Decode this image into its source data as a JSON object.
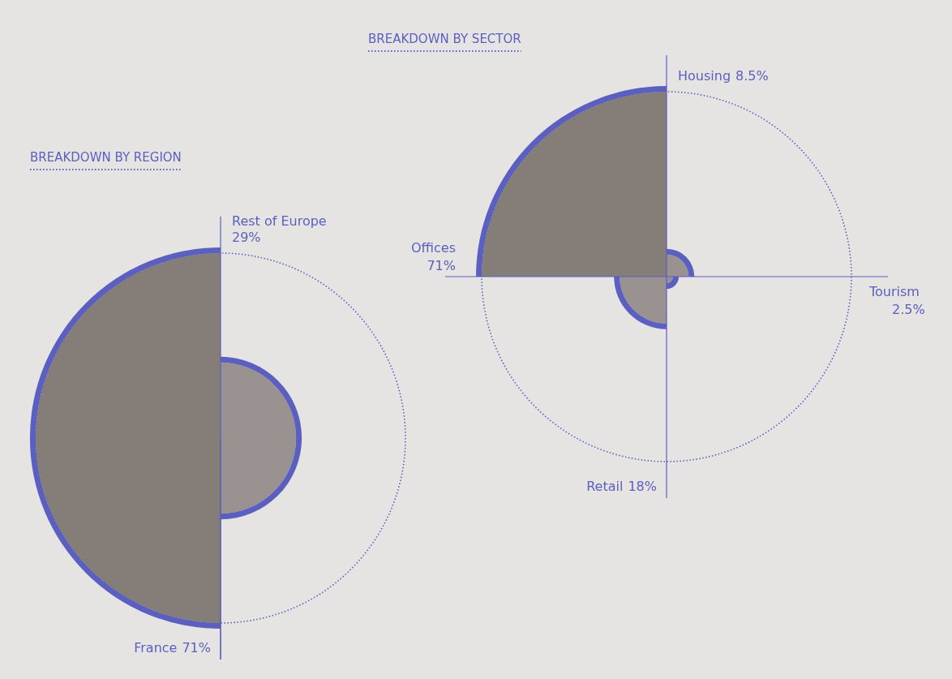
{
  "chart_data": [
    {
      "type": "other",
      "title": "BREAKDOWN BY REGION",
      "categories": [
        "Rest of Europe",
        "France"
      ],
      "values": [
        29,
        71
      ],
      "value_labels": [
        "29%",
        "71%"
      ],
      "colors": [
        "#999290",
        "#857d77"
      ]
    },
    {
      "type": "other",
      "title": "BREAKDOWN BY SECTOR",
      "categories": [
        "Housing",
        "Tourism",
        "Retail",
        "Offices"
      ],
      "values": [
        8.5,
        2.5,
        18,
        71
      ],
      "value_labels": [
        "8.5%",
        "2.5%",
        "18%",
        "71%"
      ],
      "colors": [
        "#999290",
        "#999290",
        "#999290",
        "#857d77"
      ]
    }
  ]
}
